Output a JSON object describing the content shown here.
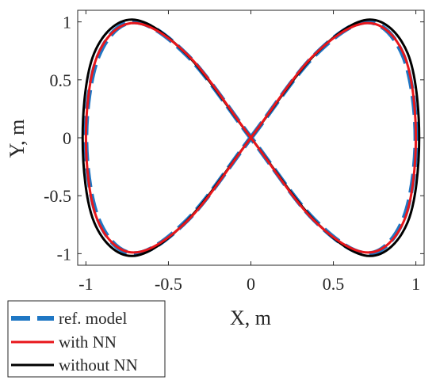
{
  "chart_data": {
    "type": "line",
    "title": "",
    "xlabel": "X, m",
    "ylabel": "Y, m",
    "xlim": [
      -1.05,
      1.05
    ],
    "ylim": [
      -1.1,
      1.1
    ],
    "xticks": [
      -1,
      -0.5,
      0,
      0.5,
      1
    ],
    "xtick_labels": [
      "-1",
      "-0.5",
      "0",
      "0.5",
      "1"
    ],
    "yticks": [
      -1,
      -0.5,
      0,
      0.5,
      1
    ],
    "ytick_labels": [
      "-1",
      "-0.5",
      "0",
      "0.5",
      "1"
    ],
    "grid": false,
    "legend_position": "bottom-left, outside axes",
    "series": [
      {
        "name": "ref. model",
        "color": "#1f77c4",
        "style": "dashed",
        "parametric": "x = sin(t), y = sin(2t), t in [0, 2*pi]",
        "x": [
          0,
          0.383,
          0.707,
          0.924,
          1,
          0.924,
          0.707,
          0.383,
          0,
          -0.383,
          -0.707,
          -0.924,
          -1,
          -0.924,
          -0.707,
          -0.383,
          0
        ],
        "y": [
          0,
          0.707,
          1,
          0.707,
          0,
          -0.707,
          -1,
          -0.707,
          0,
          0.707,
          1,
          0.707,
          0,
          -0.707,
          -1,
          -0.707,
          0
        ]
      },
      {
        "name": "with NN",
        "color": "#e8161b",
        "style": "solid",
        "x": [
          0,
          0.38,
          0.71,
          0.93,
          1.0,
          0.93,
          0.71,
          0.38,
          0,
          -0.38,
          -0.71,
          -0.93,
          -1.0,
          -0.93,
          -0.71,
          -0.38,
          0
        ],
        "y": [
          0,
          0.71,
          0.99,
          0.71,
          0,
          -0.71,
          -0.99,
          -0.71,
          0,
          0.71,
          0.99,
          0.71,
          0,
          -0.71,
          -0.99,
          -0.71,
          0
        ]
      },
      {
        "name": "without NN",
        "color": "#000000",
        "style": "solid",
        "x": [
          0,
          0.39,
          0.72,
          0.95,
          1.02,
          0.95,
          0.72,
          0.39,
          0,
          -0.39,
          -0.72,
          -0.95,
          -1.02,
          -0.95,
          -0.72,
          -0.39,
          0
        ],
        "y": [
          0,
          0.72,
          1.02,
          0.73,
          0,
          -0.73,
          -1.02,
          -0.72,
          0,
          0.72,
          1.02,
          0.73,
          0,
          -0.73,
          -1.02,
          -0.72,
          0
        ]
      }
    ]
  }
}
